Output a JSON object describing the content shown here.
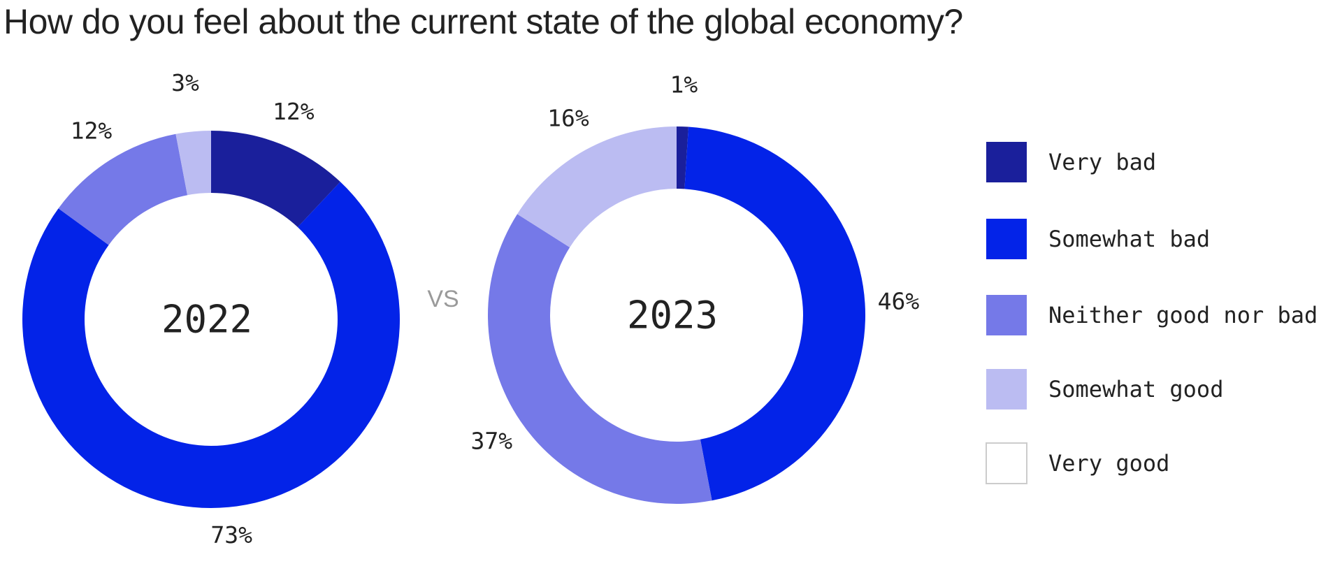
{
  "chart_data": {
    "type": "pie",
    "title": "How do you feel about the current state of the global economy?",
    "comparison_label": "VS",
    "categories": [
      "Very bad",
      "Somewhat bad",
      "Neither good nor bad",
      "Somewhat good",
      "Very good"
    ],
    "colors": [
      "#1a1f9b",
      "#0323e8",
      "#7579e8",
      "#bbbcf2",
      "#ffffff"
    ],
    "legend_border": "#cccccc",
    "legend_placement": "right",
    "charts": [
      {
        "year": "2022",
        "values": [
          12,
          73,
          12,
          3,
          0
        ],
        "labels": [
          "12%",
          "73%",
          "12%",
          "3%",
          ""
        ]
      },
      {
        "year": "2023",
        "values": [
          1,
          46,
          37,
          16,
          0
        ],
        "labels": [
          "1%",
          "46%",
          "37%",
          "16%",
          ""
        ]
      }
    ]
  }
}
